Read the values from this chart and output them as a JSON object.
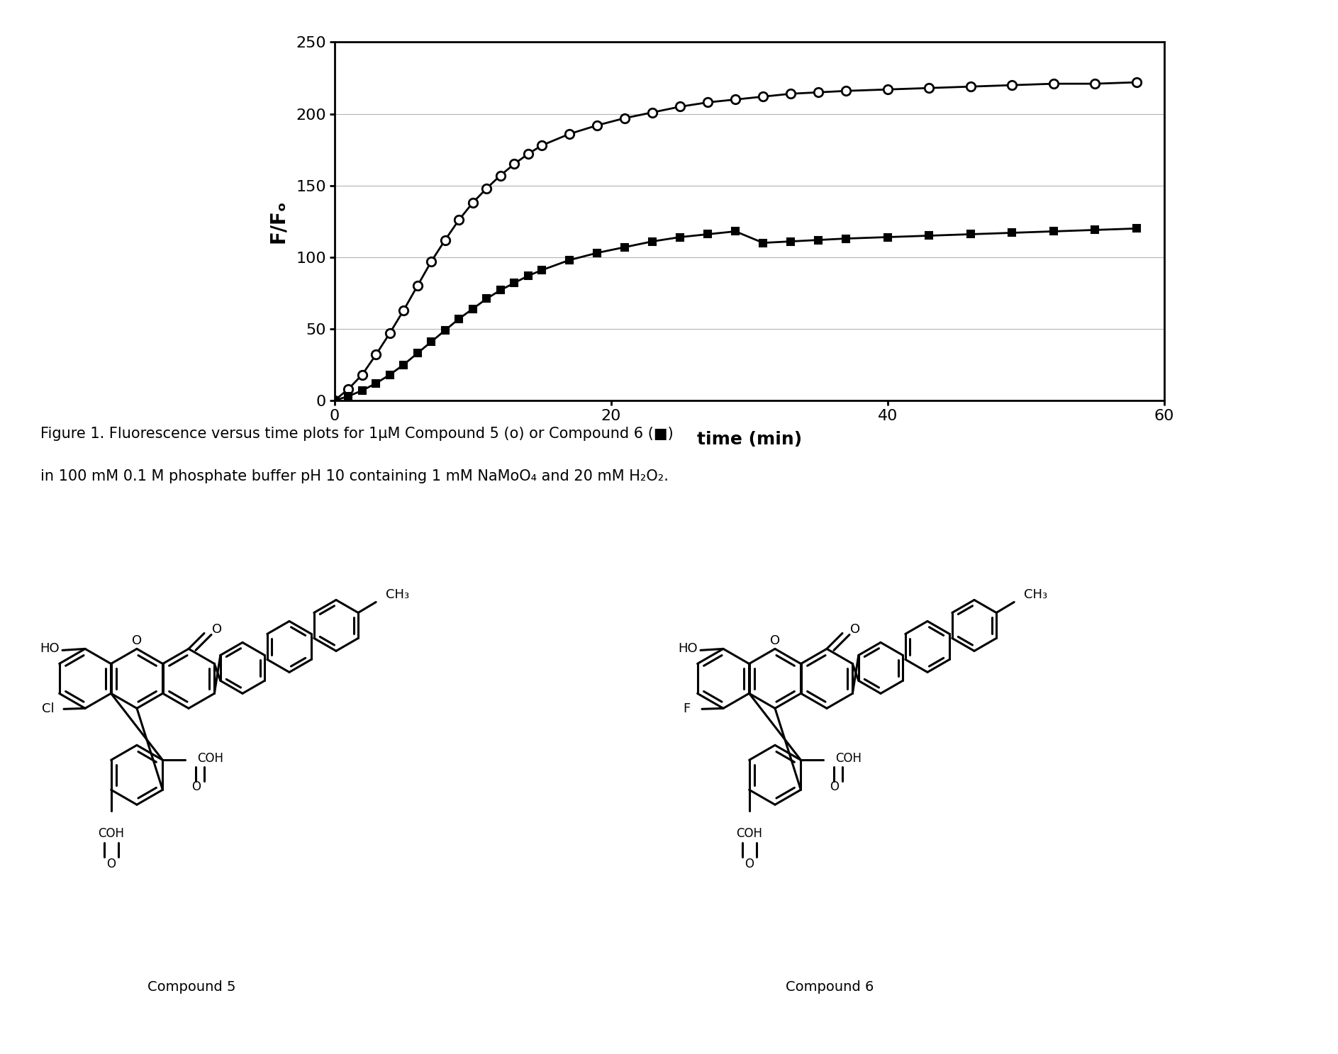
{
  "xlabel": "time (min)",
  "ylabel": "F/Fₒ",
  "xlim": [
    0,
    60
  ],
  "ylim": [
    0,
    250
  ],
  "yticks": [
    0,
    50,
    100,
    150,
    200,
    250
  ],
  "xticks": [
    0,
    20,
    40,
    60
  ],
  "compound5_x": [
    0,
    1,
    2,
    3,
    4,
    5,
    6,
    7,
    8,
    9,
    10,
    11,
    12,
    13,
    14,
    15,
    17,
    19,
    21,
    23,
    25,
    27,
    29,
    31,
    33,
    35,
    37,
    40,
    43,
    46,
    49,
    52,
    55,
    58
  ],
  "compound5_y": [
    0,
    8,
    18,
    32,
    47,
    63,
    80,
    97,
    112,
    126,
    138,
    148,
    157,
    165,
    172,
    178,
    186,
    192,
    197,
    201,
    205,
    208,
    210,
    212,
    214,
    215,
    216,
    217,
    218,
    219,
    220,
    221,
    221,
    222
  ],
  "compound6_x": [
    0,
    1,
    2,
    3,
    4,
    5,
    6,
    7,
    8,
    9,
    10,
    11,
    12,
    13,
    14,
    15,
    17,
    19,
    21,
    23,
    25,
    27,
    29,
    31,
    33,
    35,
    37,
    40,
    43,
    46,
    49,
    52,
    55,
    58
  ],
  "compound6_y": [
    0,
    3,
    7,
    12,
    18,
    25,
    33,
    41,
    49,
    57,
    64,
    71,
    77,
    82,
    87,
    91,
    98,
    103,
    107,
    111,
    114,
    116,
    118,
    110,
    111,
    112,
    113,
    114,
    115,
    116,
    117,
    118,
    119,
    120
  ],
  "caption_line1": "Figure 1. Fluorescence versus time plots for 1μM Compound 5 (o) or Compound 6 (■)",
  "caption_line2": "in 100 mM 0.1 M phosphate buffer pH 10 containing 1 mM NaMoO₄ and 20 mM H₂O₂.",
  "halogen5": "Cl",
  "halogen6": "F",
  "compound5_label": "Compound 5",
  "compound6_label": "Compound 6"
}
